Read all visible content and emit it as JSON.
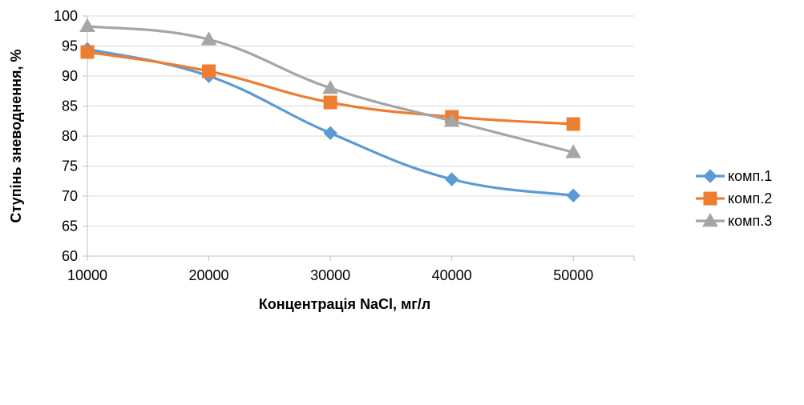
{
  "chart_data": {
    "type": "line",
    "title": "",
    "xlabel": "Концентрація NaCl, мг/л",
    "ylabel": "Ступінь зневоднення, %",
    "x": [
      10000,
      20000,
      30000,
      40000,
      50000
    ],
    "xlim": [
      10000,
      55000
    ],
    "ylim": [
      60,
      100
    ],
    "yticks": [
      60,
      65,
      70,
      75,
      80,
      85,
      90,
      95,
      100
    ],
    "grid": "horizontal",
    "smoothed": true,
    "legend_position": "right",
    "series": [
      {
        "name": "комп.1",
        "values": [
          94.5,
          90.0,
          80.5,
          72.8,
          70.1
        ],
        "color": "#5B9BD5",
        "marker": "diamond"
      },
      {
        "name": "комп.2",
        "values": [
          94.0,
          90.8,
          85.6,
          83.2,
          82.0
        ],
        "color": "#ED7D31",
        "marker": "square"
      },
      {
        "name": "комп.3",
        "values": [
          98.3,
          96.1,
          88.0,
          82.5,
          77.3
        ],
        "color": "#A5A5A5",
        "marker": "triangle"
      }
    ]
  }
}
